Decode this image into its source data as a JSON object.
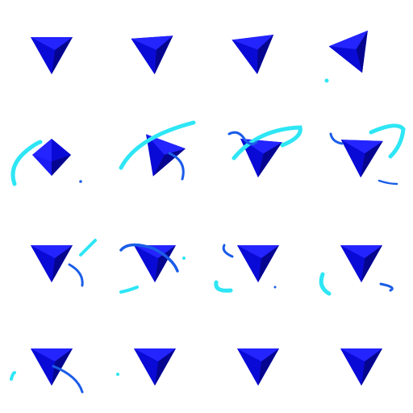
{
  "sheet": {
    "background": "#ffffff",
    "grid": {
      "rows": 4,
      "cols": 4,
      "frame_count": 16
    }
  },
  "colors": {
    "face_bright": "#1a1af5",
    "face_mid": "#0a0ad6",
    "face_dark": "#05058f",
    "face_shadow": "#04046e",
    "trail_cyan": "#2ee6f5",
    "trail_blue": "#1a5de8"
  },
  "frames": [
    {
      "index": 1,
      "rotation_deg": 0,
      "trail": "none"
    },
    {
      "index": 2,
      "rotation_deg": 5,
      "trail": "none"
    },
    {
      "index": 3,
      "rotation_deg": 10,
      "trail": "none"
    },
    {
      "index": 4,
      "rotation_deg": 25,
      "trail": "spark"
    },
    {
      "index": 5,
      "rotation_deg": 45,
      "trail": "arc-left"
    },
    {
      "index": 6,
      "rotation_deg": 20,
      "trail": "arc-wide"
    },
    {
      "index": 7,
      "rotation_deg": 10,
      "trail": "arc-top"
    },
    {
      "index": 8,
      "rotation_deg": 5,
      "trail": "arc-right"
    },
    {
      "index": 9,
      "rotation_deg": 0,
      "trail": "streak-right"
    },
    {
      "index": 10,
      "rotation_deg": 0,
      "trail": "swirl"
    },
    {
      "index": 11,
      "rotation_deg": 0,
      "trail": "hooks"
    },
    {
      "index": 12,
      "rotation_deg": 0,
      "trail": "hooks-wide"
    },
    {
      "index": 13,
      "rotation_deg": 0,
      "trail": "tail-down"
    },
    {
      "index": 14,
      "rotation_deg": 0,
      "trail": "dot"
    },
    {
      "index": 15,
      "rotation_deg": 0,
      "trail": "faint"
    },
    {
      "index": 16,
      "rotation_deg": 0,
      "trail": "none"
    }
  ]
}
